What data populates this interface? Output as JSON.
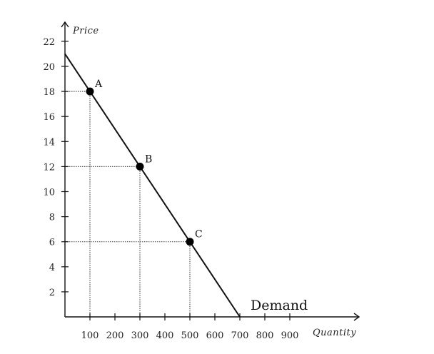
{
  "chart_data": {
    "type": "line",
    "title": "",
    "xlabel": "Quantity",
    "ylabel": "Price",
    "xlim": [
      0,
      1000
    ],
    "ylim": [
      0,
      23
    ],
    "x_ticks": [
      100,
      200,
      300,
      400,
      500,
      600,
      700,
      800,
      900
    ],
    "y_ticks": [
      2,
      4,
      6,
      8,
      10,
      12,
      14,
      16,
      18,
      20,
      22
    ],
    "grid": false,
    "series": [
      {
        "name": "Demand",
        "x": [
          0,
          700
        ],
        "y": [
          21,
          0
        ]
      }
    ],
    "points": [
      {
        "label": "A",
        "x": 100,
        "y": 18
      },
      {
        "label": "B",
        "x": 300,
        "y": 12
      },
      {
        "label": "C",
        "x": 500,
        "y": 6
      }
    ],
    "guide_lines": "dotted"
  }
}
